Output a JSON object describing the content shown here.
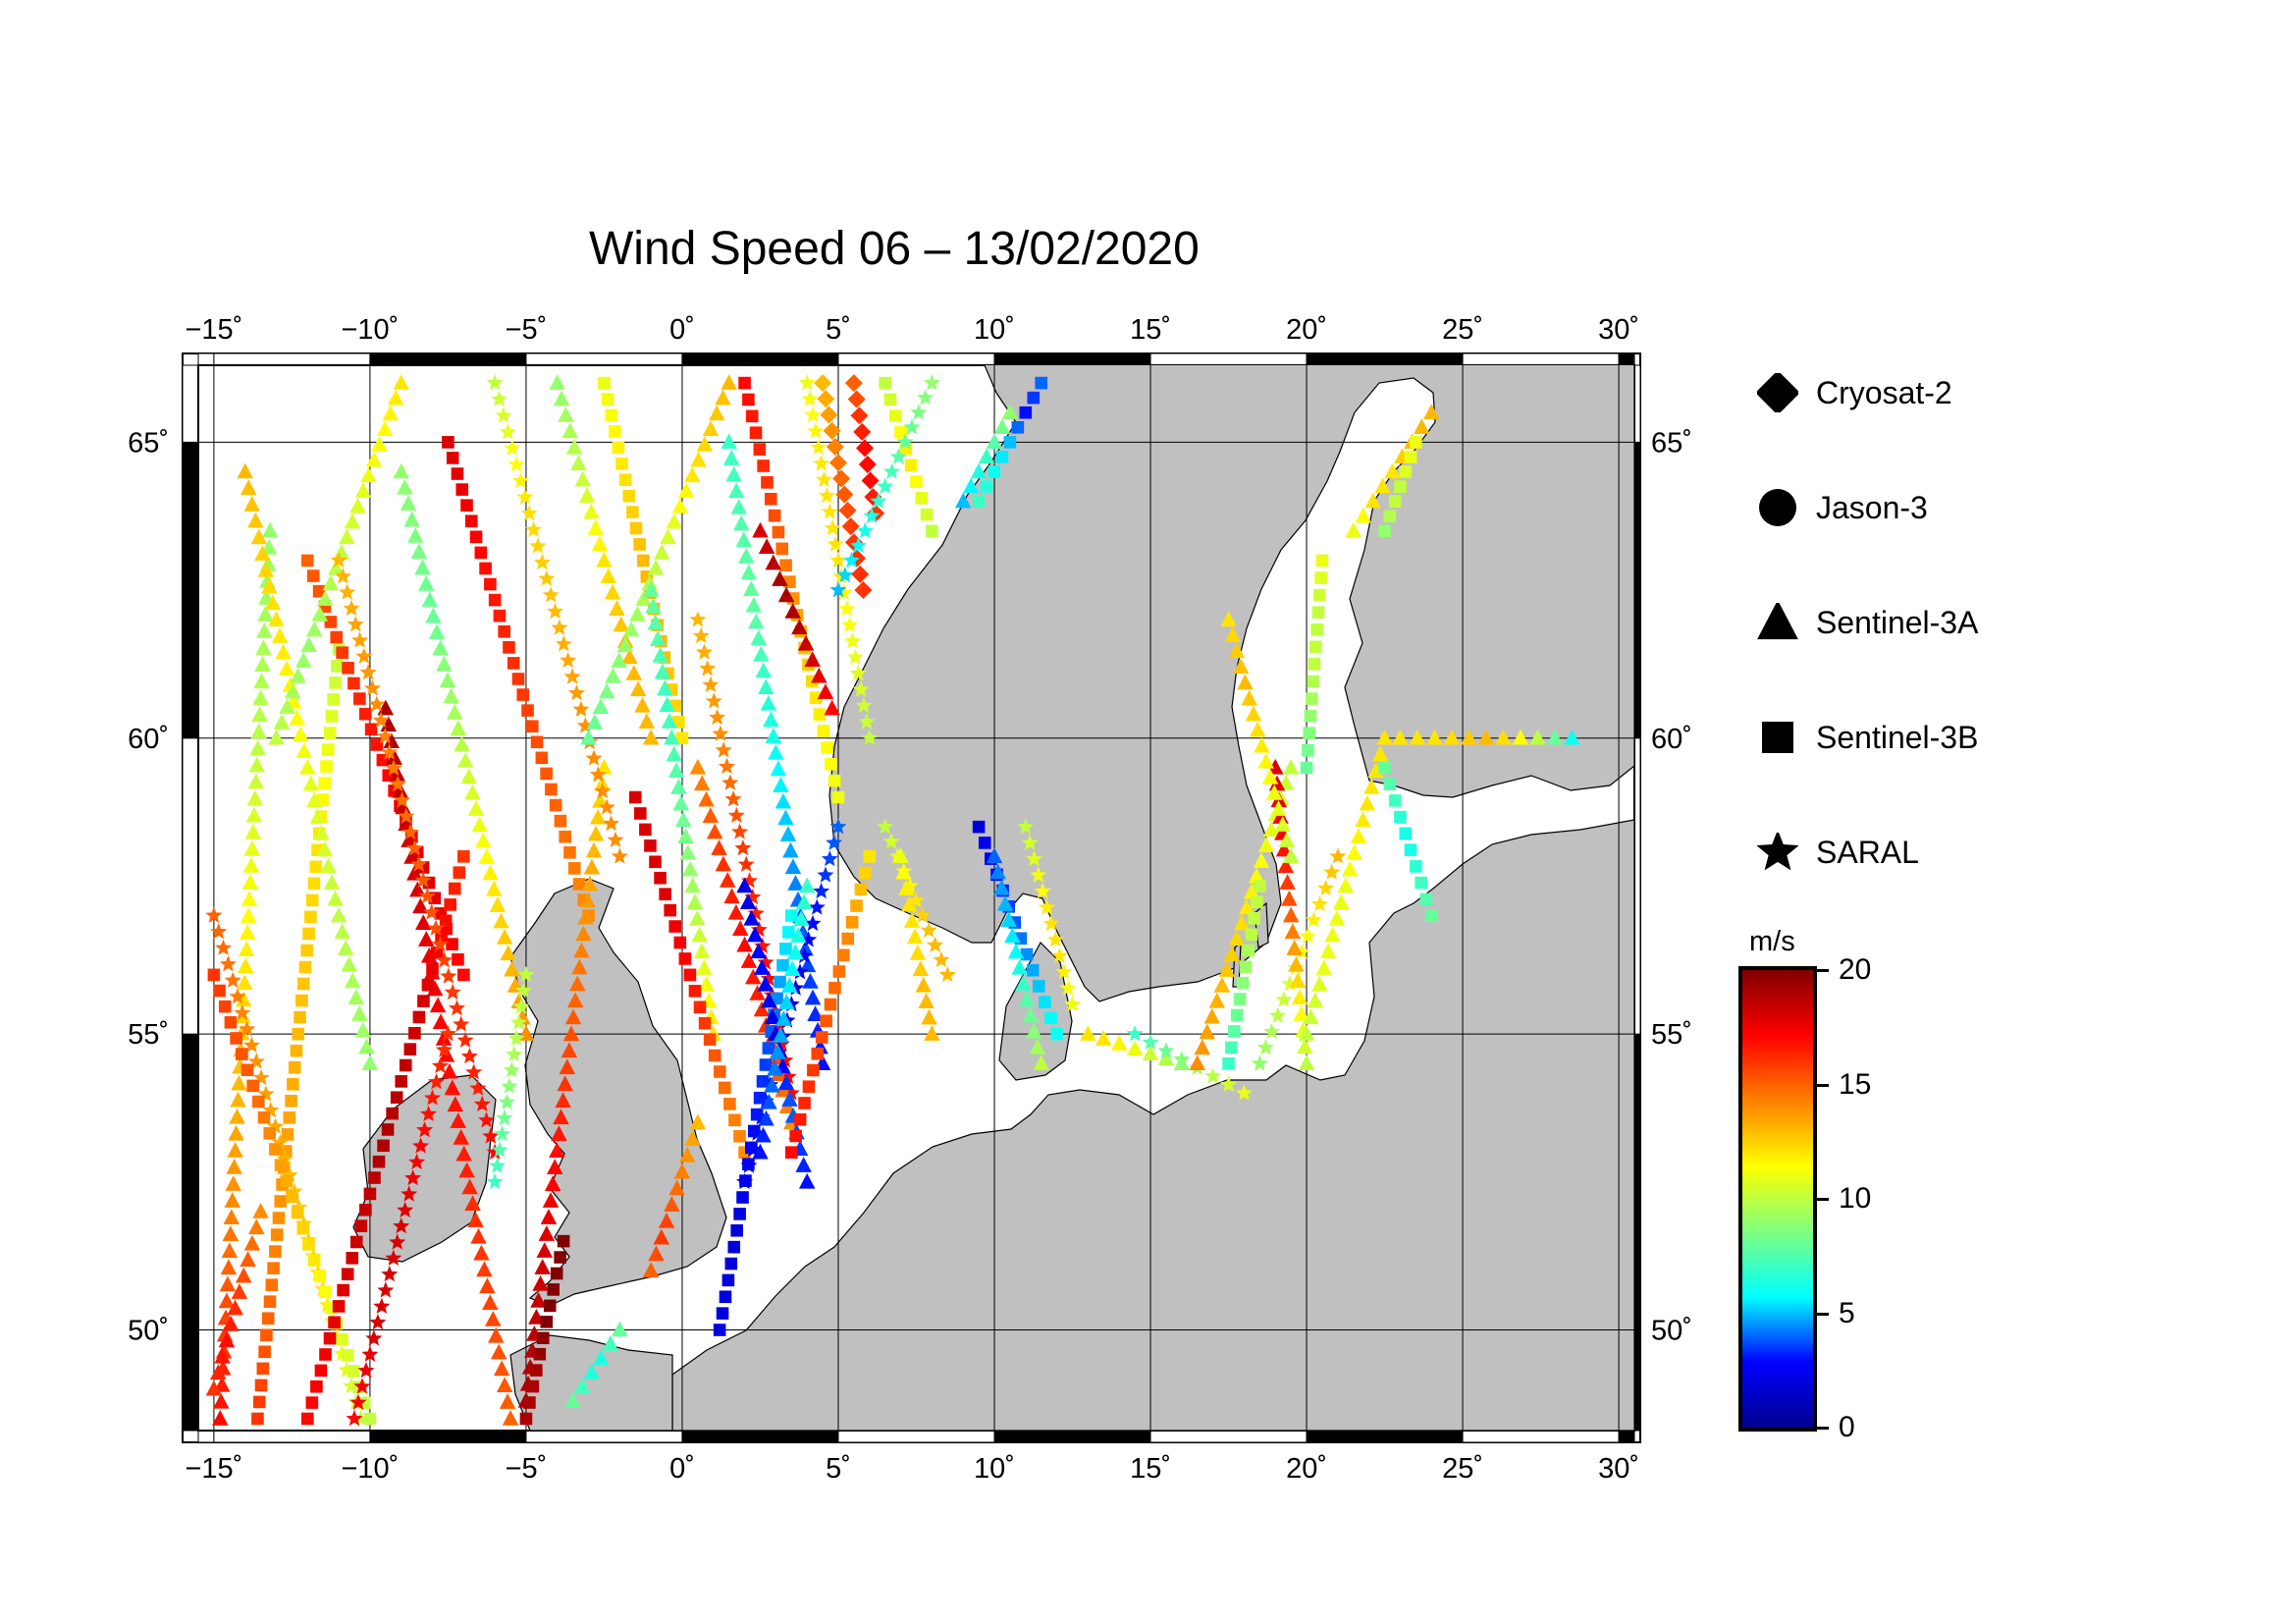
{
  "title": "Wind Speed 06 – 13/02/2020",
  "map": {
    "lon_range": [
      -15.5,
      30.5
    ],
    "lat_range": [
      48.3,
      66.3
    ],
    "lon_ticks": [
      {
        "value": -15,
        "label": "−15˚"
      },
      {
        "value": -10,
        "label": "−10˚"
      },
      {
        "value": -5,
        "label": "−5˚"
      },
      {
        "value": 0,
        "label": "0˚"
      },
      {
        "value": 5,
        "label": "5˚"
      },
      {
        "value": 10,
        "label": "10˚"
      },
      {
        "value": 15,
        "label": "15˚"
      },
      {
        "value": 20,
        "label": "20˚"
      },
      {
        "value": 25,
        "label": "25˚"
      },
      {
        "value": 30,
        "label": "30˚"
      }
    ],
    "lat_ticks": [
      {
        "value": 50,
        "label": "50˚"
      },
      {
        "value": 55,
        "label": "55˚"
      },
      {
        "value": 60,
        "label": "60˚"
      },
      {
        "value": 65,
        "label": "65˚"
      }
    ],
    "land_color": "#c0c0c0",
    "water_color": "#ffffff"
  },
  "legend": [
    {
      "name": "Cryosat-2",
      "symbol": "diamond"
    },
    {
      "name": "Jason-3",
      "symbol": "circle"
    },
    {
      "name": "Sentinel-3A",
      "symbol": "triangle"
    },
    {
      "name": "Sentinel-3B",
      "symbol": "square"
    },
    {
      "name": "SARAL",
      "symbol": "star"
    }
  ],
  "colorbar": {
    "unit": "m/s",
    "min": 0,
    "max": 20,
    "ticks": [
      {
        "value": 20,
        "label": "20"
      },
      {
        "value": 15,
        "label": "15"
      },
      {
        "value": 10,
        "label": "10"
      },
      {
        "value": 5,
        "label": "5"
      },
      {
        "value": 0,
        "label": "0"
      }
    ],
    "stops": [
      "#00008f",
      "#0000ff",
      "#00ffff",
      "#80ff80",
      "#ffff00",
      "#ff8000",
      "#ff0000",
      "#800000"
    ]
  },
  "tracks": [
    {
      "mission": "Sentinel-3A",
      "marker": "triangle",
      "from": [
        -14.8,
        48.5
      ],
      "to": [
        -13.2,
        63.5
      ],
      "wind": [
        17,
        14,
        12,
        10,
        9
      ]
    },
    {
      "mission": "Sentinel-3B",
      "marker": "square",
      "from": [
        -13.6,
        48.5
      ],
      "to": [
        -11.0,
        61.5
      ],
      "wind": [
        16,
        14,
        13,
        12,
        10
      ]
    },
    {
      "mission": "SARAL",
      "marker": "star",
      "from": [
        -15.0,
        57.0
      ],
      "to": [
        -10.3,
        48.5
      ],
      "wind": [
        15,
        14,
        13,
        12,
        10
      ]
    },
    {
      "mission": "Sentinel-3B",
      "marker": "square",
      "from": [
        -15.0,
        56.0
      ],
      "to": [
        -10.0,
        48.5
      ],
      "wind": [
        16,
        15,
        13,
        11,
        10
      ]
    },
    {
      "mission": "Sentinel-3A",
      "marker": "triangle",
      "from": [
        -14.0,
        64.5
      ],
      "to": [
        -10.0,
        54.5
      ],
      "wind": [
        13,
        12,
        11,
        10,
        9
      ]
    },
    {
      "mission": "Sentinel-3B",
      "marker": "square",
      "from": [
        -12.0,
        63.0
      ],
      "to": [
        -7.0,
        56.0
      ],
      "wind": [
        15,
        16,
        17,
        18,
        17
      ]
    },
    {
      "mission": "Sentinel-3A",
      "marker": "triangle",
      "from": [
        -9.5,
        60.5
      ],
      "to": [
        -5.5,
        48.5
      ],
      "wind": [
        19,
        18,
        17,
        16,
        15
      ]
    },
    {
      "mission": "Sentinel-3B",
      "marker": "square",
      "from": [
        -12.0,
        48.5
      ],
      "to": [
        -7.0,
        58.0
      ],
      "wind": [
        17,
        18,
        19,
        18,
        16
      ]
    },
    {
      "mission": "SARAL",
      "marker": "star",
      "from": [
        -10.5,
        48.5
      ],
      "to": [
        -7.5,
        55.0
      ],
      "wind": [
        17,
        18,
        18,
        17,
        16
      ]
    },
    {
      "mission": "Sentinel-3A",
      "marker": "triangle",
      "from": [
        -13.0,
        60.0
      ],
      "to": [
        -9.0,
        66.0
      ],
      "wind": [
        10,
        9,
        10,
        11,
        12
      ]
    },
    {
      "mission": "SARAL",
      "marker": "star",
      "from": [
        -11.0,
        63.0
      ],
      "to": [
        -6.0,
        53.0
      ],
      "wind": [
        13,
        14,
        15,
        16,
        17
      ]
    },
    {
      "mission": "Sentinel-3A",
      "marker": "triangle",
      "from": [
        -9.0,
        64.5
      ],
      "to": [
        -5.0,
        55.0
      ],
      "wind": [
        9,
        8,
        10,
        12,
        14
      ]
    },
    {
      "mission": "Sentinel-3B",
      "marker": "square",
      "from": [
        -7.5,
        65.0
      ],
      "to": [
        -3.0,
        57.0
      ],
      "wind": [
        18,
        17,
        16,
        15,
        14
      ]
    },
    {
      "mission": "Sentinel-3A",
      "marker": "triangle",
      "from": [
        -5.0,
        48.8
      ],
      "to": [
        -2.5,
        59.5
      ],
      "wind": [
        19,
        18,
        16,
        14,
        12
      ]
    },
    {
      "mission": "Sentinel-3B",
      "marker": "square",
      "from": [
        -5.0,
        48.5
      ],
      "to": [
        -3.8,
        51.5
      ],
      "wind": [
        19,
        19,
        20,
        20,
        20
      ]
    },
    {
      "mission": "SARAL",
      "marker": "star",
      "from": [
        -6.0,
        66.0
      ],
      "to": [
        -2.0,
        58.0
      ],
      "wind": [
        10,
        12,
        13,
        14,
        14
      ]
    },
    {
      "mission": "Sentinel-3A",
      "marker": "triangle",
      "from": [
        -4.0,
        66.0
      ],
      "to": [
        -1.0,
        60.0
      ],
      "wind": [
        9,
        10,
        12,
        13,
        13
      ]
    },
    {
      "mission": "Sentinel-3B",
      "marker": "square",
      "from": [
        -2.5,
        66.0
      ],
      "to": [
        0.0,
        60.0
      ],
      "wind": [
        11,
        12,
        13,
        13,
        12
      ]
    },
    {
      "mission": "Sentinel-3A",
      "marker": "triangle",
      "from": [
        -3.0,
        60.0
      ],
      "to": [
        1.5,
        66.0
      ],
      "wind": [
        8,
        9,
        10,
        12,
        13
      ]
    },
    {
      "mission": "Sentinel-3A",
      "marker": "triangle",
      "from": [
        -1.0,
        62.5
      ],
      "to": [
        1.0,
        55.0
      ],
      "wind": [
        8,
        7,
        8,
        10,
        12
      ]
    },
    {
      "mission": "Sentinel-3B",
      "marker": "square",
      "from": [
        -1.5,
        59.0
      ],
      "to": [
        2.0,
        53.0
      ],
      "wind": [
        18,
        18,
        17,
        15,
        14
      ]
    },
    {
      "mission": "SARAL",
      "marker": "star",
      "from": [
        0.5,
        62.0
      ],
      "to": [
        3.5,
        54.0
      ],
      "wind": [
        13,
        14,
        16,
        17,
        17
      ]
    },
    {
      "mission": "Sentinel-3A",
      "marker": "triangle",
      "from": [
        1.5,
        65.0
      ],
      "to": [
        4.5,
        54.5
      ],
      "wind": [
        7,
        8,
        6,
        4,
        3
      ]
    },
    {
      "mission": "Sentinel-3B",
      "marker": "square",
      "from": [
        2.0,
        66.0
      ],
      "to": [
        5.0,
        59.0
      ],
      "wind": [
        17,
        16,
        14,
        12,
        11
      ]
    },
    {
      "mission": "Sentinel-3A",
      "marker": "triangle",
      "from": [
        2.5,
        63.5
      ],
      "to": [
        4.8,
        60.5
      ],
      "wind": [
        18,
        19,
        19,
        18,
        17
      ]
    },
    {
      "mission": "Sentinel-3A",
      "marker": "triangle",
      "from": [
        0.5,
        59.5
      ],
      "to": [
        3.5,
        53.5
      ],
      "wind": [
        14,
        16,
        17,
        16,
        14
      ]
    },
    {
      "mission": "SARAL",
      "marker": "star",
      "from": [
        5.0,
        58.5
      ],
      "to": [
        2.0,
        52.5
      ],
      "wind": [
        4,
        3,
        2,
        2,
        2
      ]
    },
    {
      "mission": "Sentinel-3B",
      "marker": "square",
      "from": [
        3.5,
        57.0
      ],
      "to": [
        1.2,
        50.0
      ],
      "wind": [
        6,
        4,
        3,
        2,
        2
      ]
    },
    {
      "mission": "Sentinel-3A",
      "marker": "triangle",
      "from": [
        2.0,
        57.5
      ],
      "to": [
        4.0,
        52.5
      ],
      "wind": [
        2,
        3,
        2,
        4,
        3
      ]
    },
    {
      "mission": "Sentinel-3A",
      "marker": "triangle",
      "from": [
        4.0,
        57.5
      ],
      "to": [
        2.5,
        53.0
      ],
      "wind": [
        7,
        6,
        5,
        4,
        3
      ]
    },
    {
      "mission": "Sentinel-3B",
      "marker": "square",
      "from": [
        6.0,
        58.0
      ],
      "to": [
        3.5,
        53.0
      ],
      "wind": [
        12,
        14,
        15,
        16,
        17
      ]
    },
    {
      "mission": "SARAL",
      "marker": "star",
      "from": [
        4.0,
        66.0
      ],
      "to": [
        6.0,
        60.0
      ],
      "wind": [
        11,
        12,
        12,
        11,
        10
      ]
    },
    {
      "mission": "Cryosat-2",
      "marker": "diamond",
      "from": [
        4.5,
        66.0
      ],
      "to": [
        5.8,
        62.5
      ],
      "wind": [
        13,
        14,
        15,
        16,
        16
      ]
    },
    {
      "mission": "Cryosat-2",
      "marker": "diamond",
      "from": [
        5.5,
        66.0
      ],
      "to": [
        6.2,
        63.8
      ],
      "wind": [
        15,
        16,
        17,
        17,
        16
      ]
    },
    {
      "mission": "Sentinel-3B",
      "marker": "square",
      "from": [
        6.5,
        66.0
      ],
      "to": [
        8.0,
        63.5
      ],
      "wind": [
        10,
        11,
        12,
        11,
        10
      ]
    },
    {
      "mission": "SARAL",
      "marker": "star",
      "from": [
        8.0,
        66.0
      ],
      "to": [
        5.0,
        62.5
      ],
      "wind": [
        9,
        8,
        7,
        6,
        5
      ]
    },
    {
      "mission": "Sentinel-3A",
      "marker": "triangle",
      "from": [
        10.5,
        65.5
      ],
      "to": [
        9.0,
        64.0
      ],
      "wind": [
        9,
        8,
        7,
        6,
        5
      ]
    },
    {
      "mission": "Sentinel-3B",
      "marker": "square",
      "from": [
        11.5,
        66.0
      ],
      "to": [
        9.5,
        64.0
      ],
      "wind": [
        4,
        3,
        5,
        6,
        7
      ]
    },
    {
      "mission": "SARAL",
      "marker": "star",
      "from": [
        6.5,
        58.5
      ],
      "to": [
        8.5,
        56.0
      ],
      "wind": [
        10,
        11,
        12,
        13,
        13
      ]
    },
    {
      "mission": "Sentinel-3A",
      "marker": "triangle",
      "from": [
        7.0,
        58.0
      ],
      "to": [
        8.0,
        55.0
      ],
      "wind": [
        11,
        12,
        12,
        13,
        13
      ]
    },
    {
      "mission": "Sentinel-3B",
      "marker": "square",
      "from": [
        9.5,
        58.5
      ],
      "to": [
        12.0,
        55.0
      ],
      "wind": [
        2,
        3,
        4,
        5,
        6
      ]
    },
    {
      "mission": "Sentinel-3A",
      "marker": "triangle",
      "from": [
        10.0,
        58.0
      ],
      "to": [
        11.5,
        54.5
      ],
      "wind": [
        4,
        5,
        6,
        8,
        10
      ]
    },
    {
      "mission": "SARAL",
      "marker": "star",
      "from": [
        11.0,
        58.5
      ],
      "to": [
        12.5,
        55.5
      ],
      "wind": [
        10,
        11,
        12,
        12,
        11
      ]
    },
    {
      "mission": "Sentinel-3A",
      "marker": "triangle",
      "from": [
        13.0,
        55.0
      ],
      "to": [
        16.0,
        54.5
      ],
      "wind": [
        12,
        12,
        11,
        10,
        9
      ]
    },
    {
      "mission": "SARAL",
      "marker": "star",
      "from": [
        14.5,
        55.0
      ],
      "to": [
        18.0,
        54.0
      ],
      "wind": [
        7,
        8,
        9,
        10,
        11
      ]
    },
    {
      "mission": "Sentinel-3A",
      "marker": "triangle",
      "from": [
        16.5,
        54.5
      ],
      "to": [
        19.5,
        59.5
      ],
      "wind": [
        14,
        13,
        12,
        11,
        10
      ]
    },
    {
      "mission": "Sentinel-3B",
      "marker": "square",
      "from": [
        17.5,
        54.5
      ],
      "to": [
        18.5,
        57.5
      ],
      "wind": [
        7,
        8,
        9,
        10,
        10
      ]
    },
    {
      "mission": "SARAL",
      "marker": "star",
      "from": [
        18.5,
        54.5
      ],
      "to": [
        21.0,
        58.0
      ],
      "wind": [
        9,
        10,
        11,
        12,
        13
      ]
    },
    {
      "mission": "Sentinel-3A",
      "marker": "triangle",
      "from": [
        19.0,
        59.5
      ],
      "to": [
        20.0,
        54.5
      ],
      "wind": [
        18,
        17,
        15,
        12,
        10
      ]
    },
    {
      "mission": "Sentinel-3A",
      "marker": "triangle",
      "from": [
        20.0,
        55.0
      ],
      "to": [
        22.5,
        60.0
      ],
      "wind": [
        10,
        11,
        11,
        12,
        12
      ]
    },
    {
      "mission": "Sentinel-3B",
      "marker": "square",
      "from": [
        20.0,
        59.5
      ],
      "to": [
        20.5,
        63.0
      ],
      "wind": [
        8,
        9,
        10,
        10,
        11
      ]
    },
    {
      "mission": "Sentinel-3A",
      "marker": "triangle",
      "from": [
        17.5,
        62.0
      ],
      "to": [
        19.5,
        58.0
      ],
      "wind": [
        12,
        13,
        12,
        11,
        10
      ]
    },
    {
      "mission": "Sentinel-3B",
      "marker": "square",
      "from": [
        22.5,
        59.5
      ],
      "to": [
        24.0,
        57.0
      ],
      "wind": [
        8,
        7,
        6,
        7,
        8
      ]
    },
    {
      "mission": "Sentinel-3A",
      "marker": "triangle",
      "from": [
        21.5,
        63.5
      ],
      "to": [
        24.0,
        65.5
      ],
      "wind": [
        11,
        12,
        12,
        13,
        13
      ]
    },
    {
      "mission": "Sentinel-3B",
      "marker": "square",
      "from": [
        22.5,
        63.5
      ],
      "to": [
        23.5,
        65.0
      ],
      "wind": [
        9,
        10,
        10,
        11,
        11
      ]
    },
    {
      "mission": "Sentinel-3A",
      "marker": "triangle",
      "from": [
        23.0,
        60.0
      ],
      "to": [
        28.5,
        60.0
      ],
      "wind": [
        12,
        12,
        13,
        11,
        6
      ]
    },
    {
      "mission": "Sentinel-3A",
      "marker": "triangle",
      "from": [
        -15.0,
        49.0
      ],
      "to": [
        -13.5,
        52.0
      ],
      "wind": [
        16,
        17,
        16,
        15,
        14
      ]
    },
    {
      "mission": "SARAL",
      "marker": "star",
      "from": [
        -6.0,
        52.5
      ],
      "to": [
        -5.0,
        56.0
      ],
      "wind": [
        7,
        8,
        9,
        10,
        10
      ]
    },
    {
      "mission": "Sentinel-3A",
      "marker": "triangle",
      "from": [
        -3.5,
        48.8
      ],
      "to": [
        -2.0,
        50.0
      ],
      "wind": [
        8,
        7,
        6,
        7,
        8
      ]
    },
    {
      "mission": "Sentinel-3A",
      "marker": "triangle",
      "from": [
        -1.0,
        51.0
      ],
      "to": [
        0.5,
        53.5
      ],
      "wind": [
        15,
        16,
        15,
        14,
        13
      ]
    }
  ]
}
